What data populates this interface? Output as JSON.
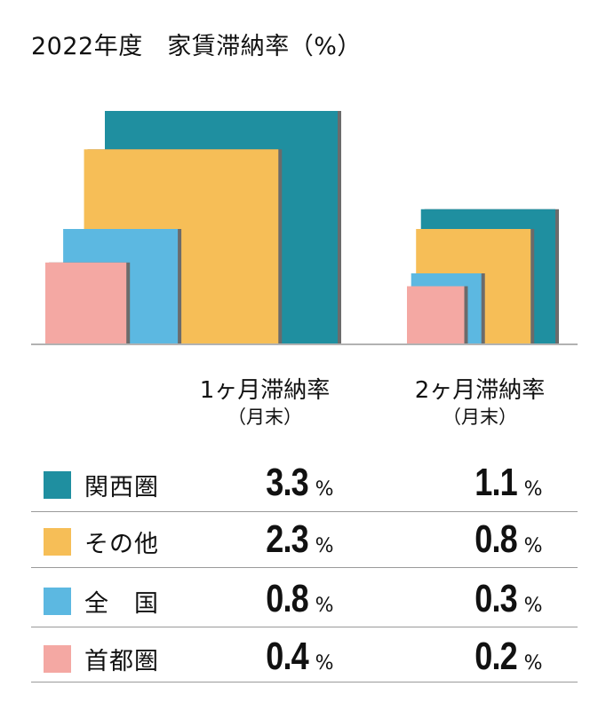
{
  "title": "2022年度　家賃滞納率（%）",
  "unit": "%",
  "colors": {
    "関西圏": "#1f8fa0",
    "その他": "#f6be57",
    "全国": "#5cb8e1",
    "首都圏": "#f4a8a3",
    "shadow": "#6b6b6b",
    "axis": "#999999"
  },
  "column_headers": [
    {
      "main": "1ヶ月滞納率",
      "sub": "（月末）"
    },
    {
      "main": "2ヶ月滞納率",
      "sub": "（月末）"
    }
  ],
  "chart_data": {
    "type": "nested-square area chart",
    "title": "2022年度　家賃滞納率（%）",
    "unit": "%",
    "categories": [
      "1ヶ月滞納率（月末）",
      "2ヶ月滞納率（月末）"
    ],
    "series": [
      {
        "name": "関西圏",
        "color": "#1f8fa0",
        "values": [
          3.3,
          1.1
        ]
      },
      {
        "name": "その他",
        "color": "#f6be57",
        "values": [
          2.3,
          0.8
        ]
      },
      {
        "name": "全国",
        "color": "#5cb8e1",
        "values": [
          0.8,
          0.3
        ]
      },
      {
        "name": "首都圏",
        "color": "#f4a8a3",
        "values": [
          0.4,
          0.2
        ]
      }
    ]
  },
  "rows": [
    {
      "label": "関西圏",
      "v1": "3.3",
      "v2": "1.1"
    },
    {
      "label": "その他",
      "v1": "2.3",
      "v2": "0.8"
    },
    {
      "label": "全　国",
      "v1": "0.8",
      "v2": "0.3"
    },
    {
      "label": "首都圏",
      "v1": "0.4",
      "v2": "0.2"
    }
  ]
}
